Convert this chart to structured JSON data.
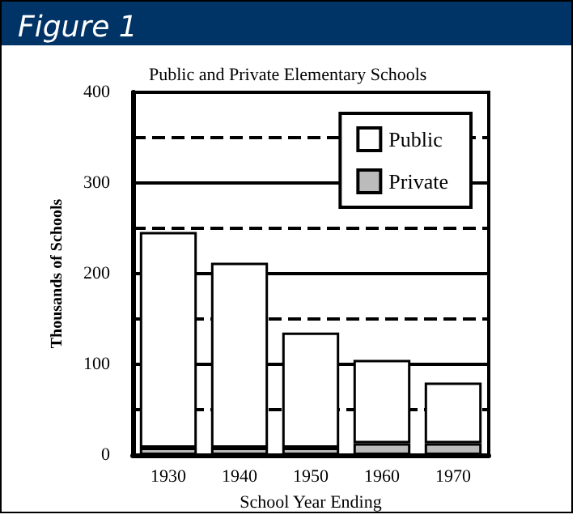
{
  "chart_data": {
    "type": "bar",
    "title": "Figure 1",
    "subtitle": "Public and Private Elementary Schools",
    "xlabel": "School Year Ending",
    "ylabel": "Thousands of Schools",
    "categories": [
      "1930",
      "1940",
      "1950",
      "1960",
      "1970"
    ],
    "stacked": true,
    "series": [
      {
        "name": "Private",
        "color": "#bbbbbb",
        "values": [
          8,
          8,
          8,
          13,
          13
        ]
      },
      {
        "name": "Public",
        "color": "#ffffff",
        "values": [
          238,
          204,
          127,
          92,
          67
        ]
      }
    ],
    "ylim": [
      0,
      400
    ],
    "yticks": [
      0,
      100,
      200,
      300,
      400
    ],
    "grid": "y",
    "legend": "top right",
    "ref_lines": [
      {
        "axis": "y",
        "value": 50,
        "line_style": "dashed"
      },
      {
        "axis": "y",
        "value": 150,
        "line_style": "dashed"
      },
      {
        "axis": "y",
        "value": 250,
        "line_style": "dashed"
      },
      {
        "axis": "y",
        "value": 350,
        "line_style": "dashed"
      }
    ]
  }
}
